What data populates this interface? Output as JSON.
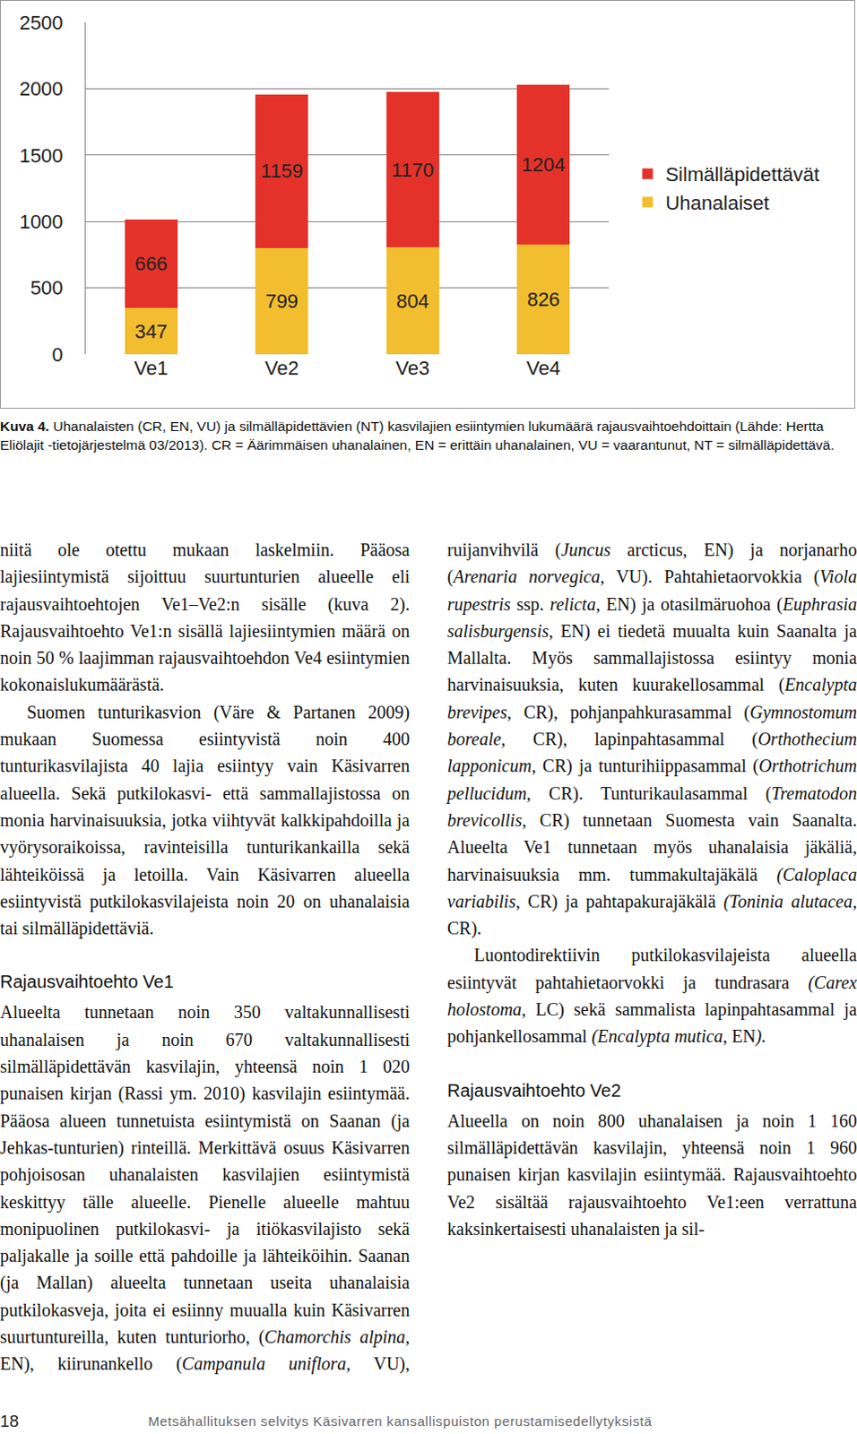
{
  "chart_data": {
    "type": "bar",
    "stacked": true,
    "data_labels": true,
    "grid": true,
    "legend": "right",
    "categories": [
      "Ve1",
      "Ve2",
      "Ve3",
      "Ve4"
    ],
    "series": [
      {
        "name": "Uhanalaiset",
        "color": "#f2bd2e",
        "values": [
          347,
          799,
          804,
          826
        ]
      },
      {
        "name": "Silmälläpidettävät",
        "color": "#e4322b",
        "values": [
          666,
          1159,
          1170,
          1204
        ]
      }
    ],
    "ylim": [
      0,
      2500
    ],
    "yticks": [
      0,
      500,
      1000,
      1500,
      2000,
      2500
    ]
  },
  "caption": {
    "label": "Kuva 4.",
    "text": "Uhanalaisten (CR, EN, VU) ja silmälläpidettävien (NT) kasvilajien esiintymien lukumäärä rajausvaihtoehdoittain (Lähde: Hertta Eliölajit -tietojärjestelmä 03/2013). CR = Äärimmäisen uhanalainen, EN = erittäin uhanalainen, VU = vaarantunut, NT = silmälläpidettävä."
  },
  "body": [
    {
      "paragraph": [
        "niitä ole otettu mukaan laskelmiin. Pääosa lajiesiintymistä sijoittuu suurtunturien alueelle eli rajausvaihtoehtojen Ve1–Ve2:n sisälle (kuva 2). Rajausvaihtoehto Ve1:n sisällä lajiesiintymien määrä on noin 50 % laajimman rajausvaihtoehdon Ve4 esiintymien kokonaislukumäärästä."
      ]
    },
    {
      "paragraph": [
        "Suomen tunturikasvion (Väre & Partanen 2009) mukaan Suomessa esiintyvistä noin 400 tunturikasvilajista 40 lajia esiintyy vain Käsivarren alueella. Sekä putkilokasvi- että sammallajistossa on monia harvinaisuuksia, jotka viihtyvät kalkkipahdoilla ja vyörysoraikoissa, ravinteisilla tunturikankailla sekä lähteiköissä ja letoilla. Vain Käsivarren alueella esiintyvistä putkilokasvilajeista noin 20 on uhanalaisia tai silmälläpidettäviä."
      ]
    },
    {
      "heading": "Rajausvaihtoehto Ve1"
    },
    {
      "paragraph": [
        "Alueelta tunnetaan noin 350 valtakunnallisesti uhanalaisen ja noin 670 valtakunnallisesti silmälläpidettävän kasvilajin, yhteensä noin 1 020 punaisen kirjan (Rassi ym. 2010) kasvilajin esiintymää. Pääosa alueen tunnetuista esiintymistä on Saanan (ja Jehkas-tunturien) rinteillä. Merkittävä osuus Käsivarren pohjoisosan uhanalaisten kasvilajien esiintymistä keskittyy tälle alueelle. Pienelle alueelle mahtuu monipuolinen putkilokasvi- ja itiökasvilajisto sekä paljakalle ja soille että pahdoille ja lähteiköihin. Saanan (ja Mallan) alueelta tunnetaan useita uhanalaisia putkilokasveja, joita ei esiinny muualla kuin Käsivarren suurtuntureilla, kuten tunturiorho, (",
        {
          "italic": "Chamorchis alpina,"
        },
        " EN), kiirunankello (",
        {
          "italic": "Campanula uniflora,"
        },
        " VU), ruijanvihvilä (",
        {
          "italic": "Juncus"
        },
        " arcticus, EN) ja norjanarho (",
        {
          "italic": "Arenaria norvegica,"
        },
        " VU). Pahtahietaorvokkia (",
        {
          "italic": "Viola rupestris"
        },
        " ssp. ",
        {
          "italic": "relicta"
        },
        ", EN) ja otasilmäruohoa (",
        {
          "italic": "Euphrasia salisburgensis"
        },
        ", EN) ei tiedetä muualta kuin Saanalta ja Mallalta. Myös sammallajistossa esiintyy monia harvinaisuuksia, kuten kuurakellosammal (",
        {
          "italic": "Encalypta brevipes,"
        },
        " CR), pohjanpahkurasammal (",
        {
          "italic": "Gymnostomum boreale,"
        },
        " CR), lapinpahtasammal (",
        {
          "italic": "Orthothecium lapponicum,"
        },
        " CR) ja tunturihiippasammal (",
        {
          "italic": "Orthotrichum pellucidum,"
        },
        " CR). Tunturikaulasammal (",
        {
          "italic": "Trematodon brevicollis,"
        },
        " CR) tunnetaan Suomesta vain Saanalta. Alueelta Ve1 tunnetaan myös uhanalaisia jäkäliä, harvinaisuuksia mm. tummakultajäkälä ",
        {
          "italic": "(Caloplaca variabilis,"
        },
        " CR) ja pahtapakurajäkälä ",
        {
          "italic": "(Toninia alutacea,"
        },
        " CR)."
      ]
    },
    {
      "paragraph": [
        "Luontodirektiivin putkilokasvilajeista alueella esiintyvät pahtahietaorvokki ja tundrasara ",
        {
          "italic": "(Carex holostoma"
        },
        ", LC) sekä sammalista lapinpahtasammal ja pohjankellosammal ",
        {
          "italic": "(Encalypta mutica"
        },
        ", EN",
        {
          "italic": ")."
        }
      ]
    },
    {
      "heading": "Rajausvaihtoehto Ve2"
    },
    {
      "paragraph": [
        "Alueella on noin 800 uhanalaisen ja noin 1 160 silmälläpidettävän kasvilajin, yhteensä noin 1 960 punaisen kirjan kasvilajin esiintymää. Rajausvaihtoehto Ve2 sisältää rajausvaihtoehto Ve1:een verrattuna kaksinkertaisesti uhanalaisten ja sil-"
      ]
    }
  ],
  "footer": {
    "page": "18",
    "title": "Metsähallituksen selvitys Käsivarren kansallispuiston perustamisedellytyksistä"
  }
}
